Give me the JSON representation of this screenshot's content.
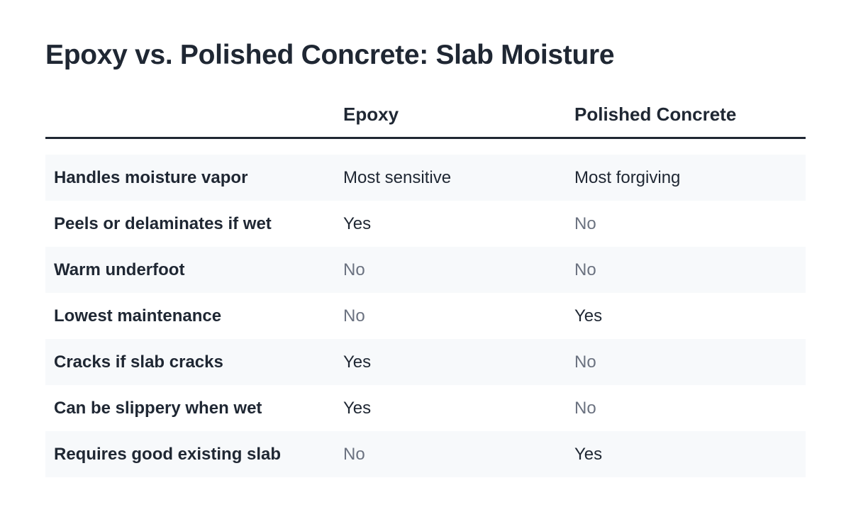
{
  "title": "Epoxy vs. Polished Concrete: Slab Moisture",
  "table": {
    "header": [
      "Epoxy",
      "Polished Concrete"
    ],
    "rows": [
      [
        "Handles moisture vapor",
        "Most sensitive",
        "Most forgiving"
      ],
      [
        "Peels or delaminates if wet",
        "Yes",
        "No"
      ],
      [
        "Warm underfoot",
        "No",
        "No"
      ],
      [
        "Lowest maintenance",
        "No",
        "Yes"
      ],
      [
        "Cracks if slab cracks",
        "Yes",
        "No"
      ],
      [
        "Can be slippery when wet",
        "Yes",
        "No"
      ],
      [
        "Requires good existing slab",
        "No",
        "Yes"
      ]
    ]
  }
}
